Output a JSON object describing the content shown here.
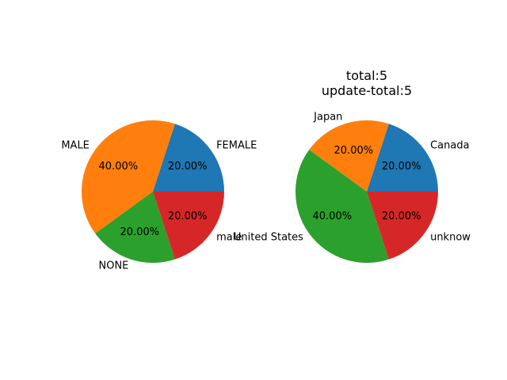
{
  "chart_data": [
    {
      "type": "pie",
      "title_lines": [],
      "categories": [
        "FEMALE",
        "MALE",
        "NONE",
        "male"
      ],
      "values": [
        1,
        2,
        1,
        1
      ],
      "autopct_labels": [
        "20.00%",
        "40.00%",
        "20.00%",
        "20.00%"
      ],
      "colors": [
        "#1f77b4",
        "#ff7f0e",
        "#2ca02c",
        "#d62728"
      ]
    },
    {
      "type": "pie",
      "title_lines": [
        "total:5",
        "update-total:5"
      ],
      "categories": [
        "Canada",
        "Japan",
        "United States",
        "unknow"
      ],
      "values": [
        1,
        1,
        2,
        1
      ],
      "autopct_labels": [
        "20.00%",
        "20.00%",
        "40.00%",
        "20.00%"
      ],
      "colors": [
        "#1f77b4",
        "#ff7f0e",
        "#2ca02c",
        "#d62728"
      ]
    }
  ]
}
